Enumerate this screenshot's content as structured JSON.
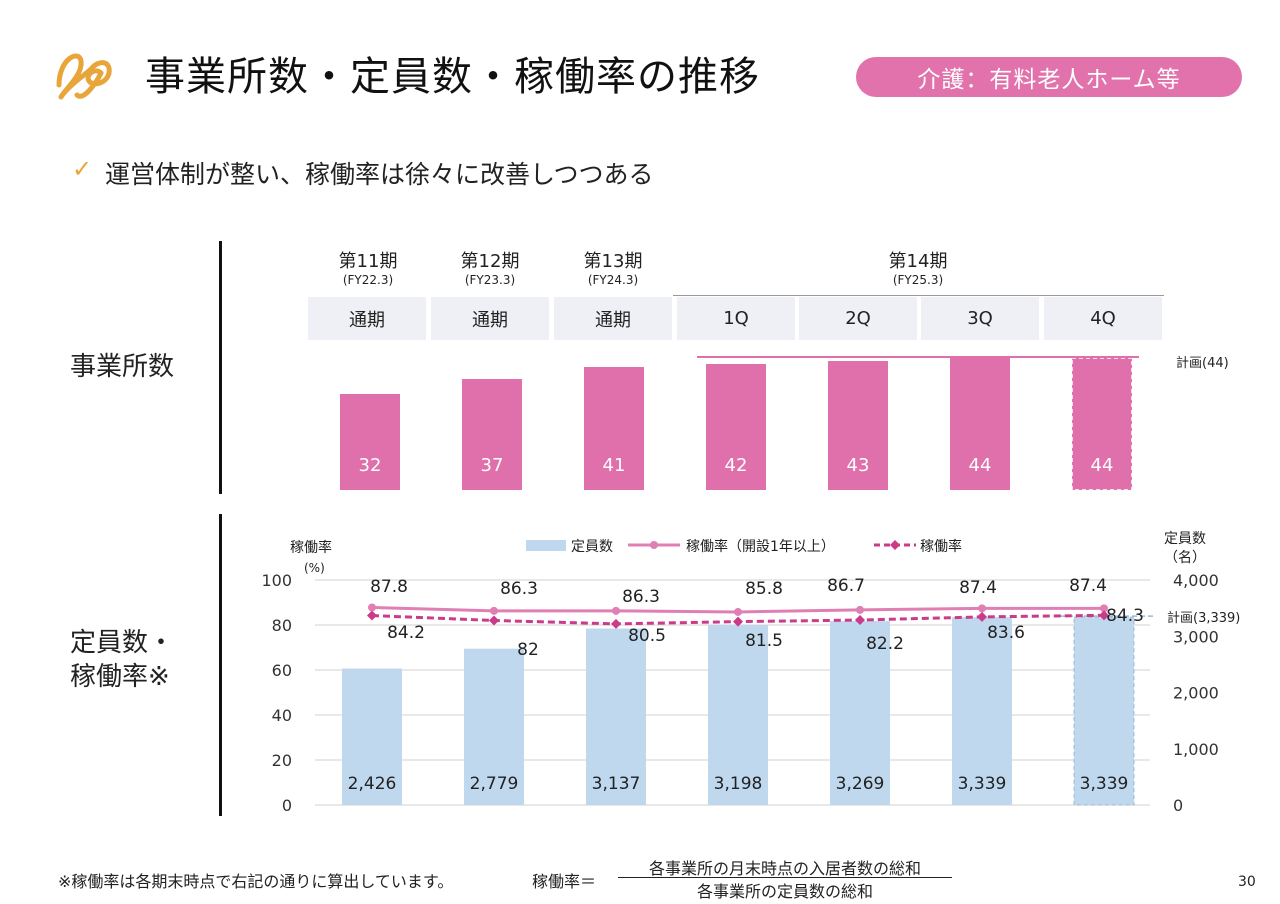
{
  "header": {
    "title": "事業所数・定員数・稼働率の推移",
    "badge": "介護：有料老人ホーム等",
    "logo_icon": "company-logo-icon",
    "accent_color": "#e172ac",
    "logo_color": "#e8a53a"
  },
  "bullet": {
    "icon": "check-icon",
    "text": "運営体制が整い、稼働率は徐々に改善しつつある"
  },
  "sections": {
    "facilities_label": "事業所数",
    "capacity_label_line1": "定員数・",
    "capacity_label_line2": "稼働率※"
  },
  "periods": [
    {
      "name": "第11期",
      "fy": "(FY22.3)",
      "sub": "通期"
    },
    {
      "name": "第12期",
      "fy": "(FY23.3)",
      "sub": "通期"
    },
    {
      "name": "第13期",
      "fy": "(FY24.3)",
      "sub": "通期"
    },
    {
      "name": "第14期",
      "fy": "(FY25.3)",
      "subs": [
        "1Q",
        "2Q",
        "3Q",
        "4Q"
      ]
    }
  ],
  "chart_data": [
    {
      "type": "bar",
      "categories": [
        "第11期 通期",
        "第12期 通期",
        "第13期 通期",
        "第14期 1Q",
        "第14期 2Q",
        "第14期 3Q",
        "第14期 4Q"
      ],
      "values": [
        32,
        37,
        41,
        42,
        43,
        44,
        44
      ],
      "value_labels": [
        "32",
        "37",
        "41",
        "42",
        "43",
        "44",
        "44"
      ],
      "last_is_plan": true,
      "plan_line": {
        "value": 44,
        "label": "計画(44)"
      },
      "bar_color": "#e070ab"
    },
    {
      "type": "bar",
      "categories": [
        "第11期 通期",
        "第12期 通期",
        "第13期 通期",
        "第14期 1Q",
        "第14期 2Q",
        "第14期 3Q",
        "第14期 4Q"
      ],
      "series": [
        {
          "name": "定員数",
          "axis": "right",
          "values": [
            2426,
            2779,
            3137,
            3198,
            3269,
            3339,
            3339
          ],
          "labels": [
            "2,426",
            "2,779",
            "3,137",
            "3,198",
            "3,269",
            "3,339",
            "3,339"
          ],
          "color": "#bfd8ee"
        },
        {
          "name": "稼働率（開設1年以上）",
          "axis": "left",
          "kind": "line",
          "values": [
            87.8,
            86.3,
            86.3,
            85.8,
            86.7,
            87.4,
            87.4
          ],
          "labels": [
            "87.8",
            "86.3",
            "86.3",
            "85.8",
            "86.7",
            "87.4",
            "87.4"
          ],
          "color": "#e07fb4"
        },
        {
          "name": "稼働率",
          "axis": "left",
          "kind": "dashed-line",
          "values": [
            84.2,
            82,
            80.5,
            81.5,
            82.2,
            83.6,
            84.3
          ],
          "labels": [
            "84.2",
            "82",
            "80.5",
            "81.5",
            "82.2",
            "83.6",
            "84.3"
          ],
          "color": "#cc3b8a"
        }
      ],
      "last_is_plan": true,
      "plan_line": {
        "value": 3339,
        "label": "計画(3,339)"
      },
      "ylabel_left_line1": "稼働率",
      "ylabel_left_line2": "(%)",
      "ylabel_right_line1": "定員数",
      "ylabel_right_line2": "（名）",
      "ylim_left": [
        0,
        100
      ],
      "ylim_right": [
        0,
        4000
      ],
      "yticks_left": [
        "0",
        "20",
        "40",
        "60",
        "80",
        "100"
      ],
      "yticks_right": [
        "0",
        "1,000",
        "2,000",
        "3,000",
        "4,000"
      ],
      "grid": true,
      "legend_position": "top"
    }
  ],
  "footnote": "※稼働率は各期末時点で右記の通りに算出しています。",
  "formula": {
    "label": "稼働率＝",
    "numerator": "各事業所の月末時点の入居者数の総和",
    "denominator": "各事業所の定員数の総和"
  },
  "page_number": "30"
}
